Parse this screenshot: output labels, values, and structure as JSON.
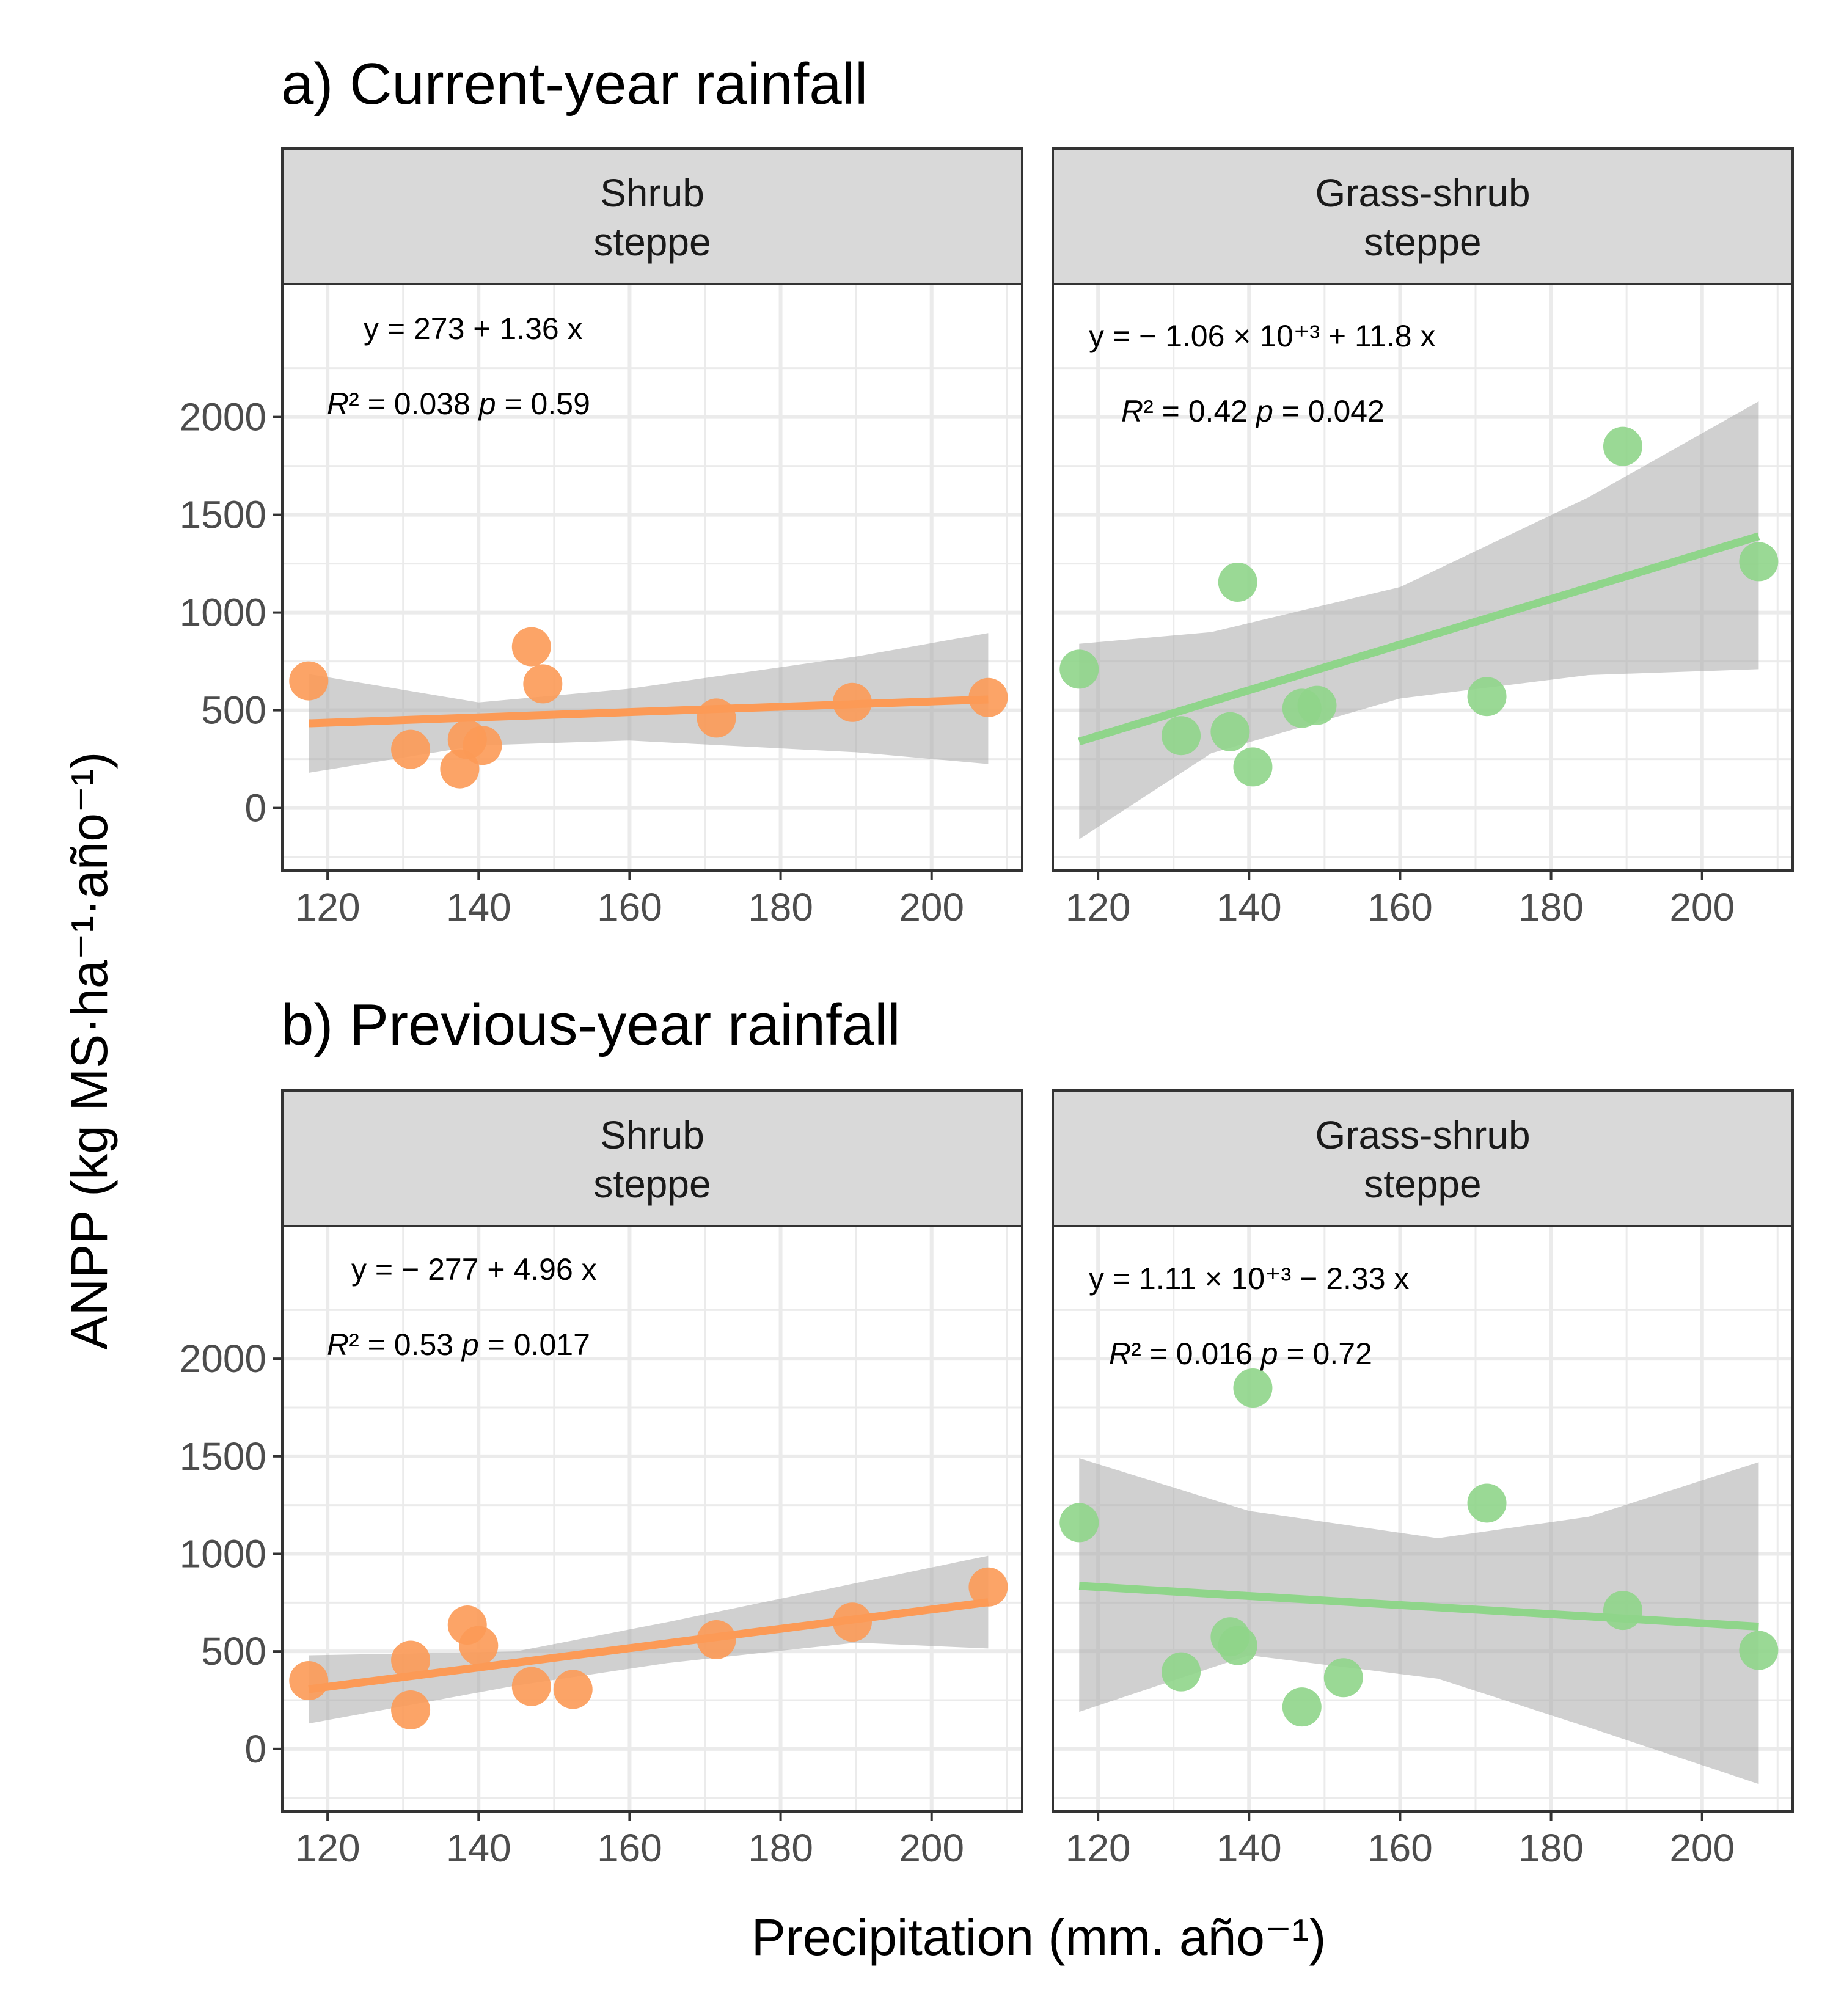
{
  "figure": {
    "ylabel": "ANPP (kg MS·ha⁻¹·año⁻¹)",
    "xlabel": "Precipitation (mm. año⁻¹)"
  },
  "colors": {
    "shrub": "#fc9a56",
    "grass": "#8fd58a",
    "band": "#a9a9a9",
    "strip_bg": "#d9d9d9",
    "grid": "#ebebeb"
  },
  "chart_data": [
    {
      "type": "scatter",
      "section": "a) Current-year rainfall",
      "panel": "Shrub\nsteppe",
      "panel_lines": [
        "Shrub",
        "steppe"
      ],
      "color_key": "shrub",
      "xlim": [
        114,
        212
      ],
      "ylim": [
        -320,
        2680
      ],
      "x_ticks": [
        120,
        140,
        160,
        180,
        200
      ],
      "y_ticks": [
        0,
        500,
        1000,
        1500,
        2000
      ],
      "x": [
        117.5,
        131,
        137.5,
        138.5,
        140.5,
        147,
        148.5,
        171.5,
        189.5,
        207.5
      ],
      "y": [
        650,
        300,
        200,
        350,
        320,
        825,
        635,
        460,
        540,
        565
      ],
      "fit": {
        "x": [
          117.5,
          207.5
        ],
        "y": [
          433,
          555
        ]
      },
      "ci_band": {
        "x": [
          117.5,
          140,
          160,
          190,
          207.5
        ],
        "lower": [
          180,
          320,
          345,
          285,
          225
        ],
        "upper": [
          685,
          540,
          610,
          775,
          895
        ]
      },
      "equation": "y = 273 + 1.36 x",
      "r2": "0.038",
      "p": "0.59"
    },
    {
      "type": "scatter",
      "section": "a) Current-year rainfall",
      "panel": "Grass-shrub\nsteppe",
      "panel_lines": [
        "Grass-shrub",
        "steppe"
      ],
      "color_key": "grass",
      "xlim": [
        114,
        212
      ],
      "ylim": [
        -320,
        2680
      ],
      "x_ticks": [
        120,
        140,
        160,
        180,
        200
      ],
      "y_ticks": [
        0,
        500,
        1000,
        1500,
        2000
      ],
      "x": [
        117.5,
        131,
        137.5,
        138.5,
        140.5,
        147,
        149,
        171.5,
        189.5,
        207.5
      ],
      "y": [
        710,
        370,
        390,
        1155,
        210,
        510,
        525,
        570,
        1850,
        1260
      ],
      "fit": {
        "x": [
          117.5,
          207.5
        ],
        "y": [
          340,
          1390
        ]
      },
      "ci_band": {
        "x": [
          117.5,
          135,
          160,
          185,
          207.5
        ],
        "lower": [
          -160,
          280,
          560,
          680,
          710
        ],
        "upper": [
          840,
          900,
          1130,
          1590,
          2080
        ]
      },
      "equation": "y = − 1.06 × 10⁺³ + 11.8 x",
      "r2": "0.42",
      "p": "0.042"
    },
    {
      "type": "scatter",
      "section": "b) Previous-year rainfall",
      "panel": "Shrub\nsteppe",
      "panel_lines": [
        "Shrub",
        "steppe"
      ],
      "color_key": "shrub",
      "xlim": [
        114,
        212
      ],
      "ylim": [
        -320,
        2680
      ],
      "x_ticks": [
        120,
        140,
        160,
        180,
        200
      ],
      "y_ticks": [
        0,
        500,
        1000,
        1500,
        2000
      ],
      "x": [
        117.5,
        131,
        131,
        138.5,
        140,
        147,
        152.5,
        171.5,
        189.5,
        207.5
      ],
      "y": [
        350,
        455,
        200,
        635,
        530,
        320,
        305,
        560,
        650,
        830
      ],
      "fit": {
        "x": [
          117.5,
          207.5
        ],
        "y": [
          306,
          752
        ]
      },
      "ci_band": {
        "x": [
          117.5,
          145,
          165,
          190,
          207.5
        ],
        "lower": [
          130,
          325,
          440,
          545,
          515
        ],
        "upper": [
          480,
          500,
          650,
          850,
          990
        ]
      },
      "equation": "y = − 277 + 4.96 x",
      "r2": "0.53",
      "p": "0.017"
    },
    {
      "type": "scatter",
      "section": "b) Previous-year rainfall",
      "panel": "Grass-shrub\nsteppe",
      "panel_lines": [
        "Grass-shrub",
        "steppe"
      ],
      "color_key": "grass",
      "xlim": [
        114,
        212
      ],
      "ylim": [
        -320,
        2680
      ],
      "x_ticks": [
        120,
        140,
        160,
        180,
        200
      ],
      "y_ticks": [
        0,
        500,
        1000,
        1500,
        2000
      ],
      "x": [
        117.5,
        131,
        137.5,
        138.5,
        140.5,
        147,
        152.5,
        171.5,
        189.5,
        207.5
      ],
      "y": [
        1160,
        395,
        575,
        530,
        1850,
        215,
        365,
        1260,
        710,
        505
      ],
      "fit": {
        "x": [
          117.5,
          207.5
        ],
        "y": [
          836,
          627
        ]
      },
      "ci_band": {
        "x": [
          117.5,
          140,
          165,
          185,
          207.5
        ],
        "lower": [
          190,
          480,
          360,
          110,
          -180
        ],
        "upper": [
          1490,
          1220,
          1080,
          1190,
          1470
        ]
      },
      "equation": "y = 1.11 × 10⁺³ − 2.33 x",
      "r2": "0.016",
      "p": "0.72"
    }
  ]
}
